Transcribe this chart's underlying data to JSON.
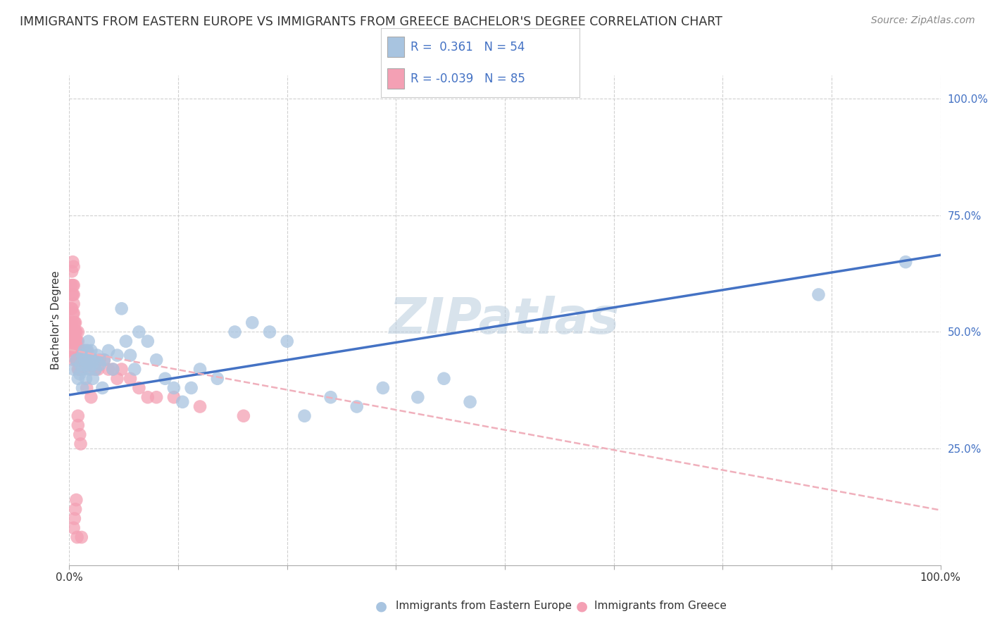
{
  "title": "IMMIGRANTS FROM EASTERN EUROPE VS IMMIGRANTS FROM GREECE BACHELOR'S DEGREE CORRELATION CHART",
  "source": "Source: ZipAtlas.com",
  "ylabel": "Bachelor's Degree",
  "legend_blue_R": "0.361",
  "legend_blue_N": "54",
  "legend_pink_R": "-0.039",
  "legend_pink_N": "85",
  "blue_color": "#a8c4e0",
  "pink_color": "#f4a0b4",
  "line_blue_color": "#4472c4",
  "line_pink_color": "#f0b0bc",
  "watermark": "ZIPatlas",
  "blue_scatter_x": [
    0.005,
    0.008,
    0.01,
    0.012,
    0.013,
    0.015,
    0.015,
    0.016,
    0.017,
    0.018,
    0.019,
    0.02,
    0.021,
    0.022,
    0.023,
    0.024,
    0.025,
    0.026,
    0.027,
    0.028,
    0.03,
    0.032,
    0.035,
    0.038,
    0.04,
    0.045,
    0.05,
    0.055,
    0.06,
    0.065,
    0.07,
    0.075,
    0.08,
    0.09,
    0.1,
    0.11,
    0.12,
    0.13,
    0.14,
    0.15,
    0.17,
    0.19,
    0.21,
    0.23,
    0.25,
    0.27,
    0.3,
    0.33,
    0.36,
    0.4,
    0.43,
    0.46,
    0.86,
    0.96
  ],
  "blue_scatter_y": [
    0.42,
    0.44,
    0.4,
    0.41,
    0.43,
    0.45,
    0.38,
    0.42,
    0.46,
    0.44,
    0.4,
    0.43,
    0.46,
    0.48,
    0.42,
    0.44,
    0.46,
    0.43,
    0.4,
    0.44,
    0.42,
    0.45,
    0.43,
    0.38,
    0.44,
    0.46,
    0.42,
    0.45,
    0.55,
    0.48,
    0.45,
    0.42,
    0.5,
    0.48,
    0.44,
    0.4,
    0.38,
    0.35,
    0.38,
    0.42,
    0.4,
    0.5,
    0.52,
    0.5,
    0.48,
    0.32,
    0.36,
    0.34,
    0.38,
    0.36,
    0.4,
    0.35,
    0.58,
    0.65
  ],
  "pink_scatter_x": [
    0.001,
    0.002,
    0.002,
    0.002,
    0.002,
    0.003,
    0.003,
    0.003,
    0.003,
    0.003,
    0.004,
    0.004,
    0.004,
    0.004,
    0.004,
    0.005,
    0.005,
    0.005,
    0.005,
    0.005,
    0.005,
    0.005,
    0.005,
    0.005,
    0.005,
    0.006,
    0.006,
    0.006,
    0.006,
    0.007,
    0.007,
    0.007,
    0.007,
    0.008,
    0.008,
    0.008,
    0.008,
    0.009,
    0.009,
    0.009,
    0.01,
    0.01,
    0.01,
    0.01,
    0.01,
    0.011,
    0.011,
    0.012,
    0.012,
    0.013,
    0.014,
    0.015,
    0.016,
    0.018,
    0.02,
    0.022,
    0.025,
    0.028,
    0.03,
    0.033,
    0.035,
    0.04,
    0.045,
    0.05,
    0.055,
    0.06,
    0.07,
    0.08,
    0.09,
    0.1,
    0.12,
    0.15,
    0.2,
    0.02,
    0.025,
    0.005,
    0.006,
    0.007,
    0.008,
    0.009,
    0.01,
    0.01,
    0.012,
    0.013,
    0.014
  ],
  "pink_scatter_y": [
    0.46,
    0.5,
    0.52,
    0.55,
    0.6,
    0.48,
    0.52,
    0.55,
    0.58,
    0.63,
    0.5,
    0.54,
    0.58,
    0.6,
    0.65,
    0.44,
    0.46,
    0.48,
    0.5,
    0.52,
    0.54,
    0.56,
    0.58,
    0.6,
    0.64,
    0.46,
    0.48,
    0.5,
    0.52,
    0.46,
    0.48,
    0.5,
    0.52,
    0.44,
    0.46,
    0.48,
    0.5,
    0.44,
    0.46,
    0.48,
    0.42,
    0.44,
    0.46,
    0.48,
    0.5,
    0.42,
    0.44,
    0.44,
    0.46,
    0.44,
    0.42,
    0.44,
    0.44,
    0.46,
    0.46,
    0.44,
    0.42,
    0.44,
    0.42,
    0.42,
    0.44,
    0.44,
    0.42,
    0.42,
    0.4,
    0.42,
    0.4,
    0.38,
    0.36,
    0.36,
    0.36,
    0.34,
    0.32,
    0.38,
    0.36,
    0.08,
    0.1,
    0.12,
    0.14,
    0.06,
    0.3,
    0.32,
    0.28,
    0.26,
    0.06
  ],
  "blue_line_x": [
    0.0,
    1.0
  ],
  "blue_line_y_start": 0.365,
  "blue_line_y_end": 0.665,
  "pink_line_x": [
    0.0,
    1.0
  ],
  "pink_line_y_start": 0.462,
  "pink_line_y_end": 0.118,
  "xlim": [
    0.0,
    1.0
  ],
  "ylim": [
    0.0,
    1.05
  ],
  "background_color": "#ffffff",
  "grid_color": "#d0d0d0"
}
